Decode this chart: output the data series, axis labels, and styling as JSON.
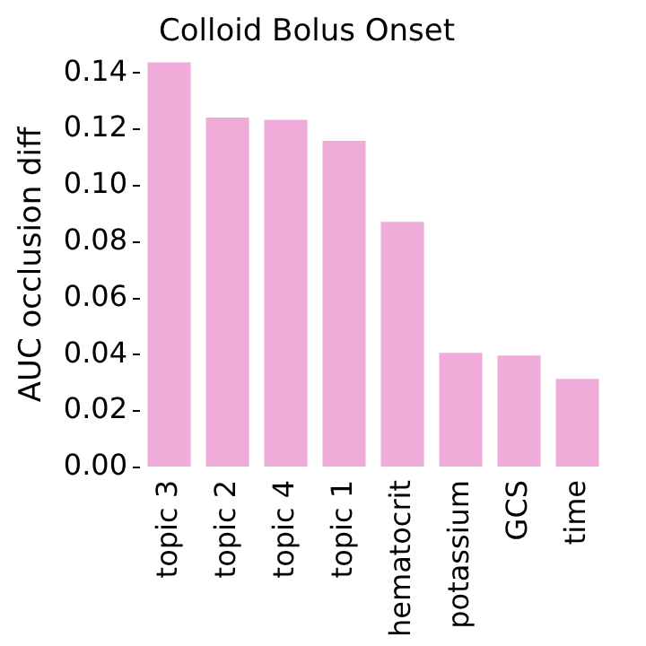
{
  "chart_data": {
    "type": "bar",
    "title": "Colloid Bolus Onset",
    "ylabel": "AUC occlusion diff",
    "categories": [
      "topic 3",
      "topic 2",
      "topic 4",
      "topic 1",
      "hematocrit",
      "potassium",
      "GCS",
      "time"
    ],
    "values": [
      0.1438,
      0.1242,
      0.1234,
      0.1159,
      0.0872,
      0.0407,
      0.0397,
      0.0314
    ],
    "color": "#efacd9",
    "ylim": [
      0,
      0.144
    ],
    "yticks": [
      {
        "value": 0,
        "label": "0.00"
      },
      {
        "value": 0.02,
        "label": "0.02"
      },
      {
        "value": 0.04,
        "label": "0.04"
      },
      {
        "value": 0.06,
        "label": "0.06"
      },
      {
        "value": 0.08,
        "label": "0.08"
      },
      {
        "value": 0.1,
        "label": "0.10"
      },
      {
        "value": 0.12,
        "label": "0.12"
      },
      {
        "value": 0.14,
        "label": "0.14"
      }
    ],
    "grid": false,
    "legend": false
  }
}
